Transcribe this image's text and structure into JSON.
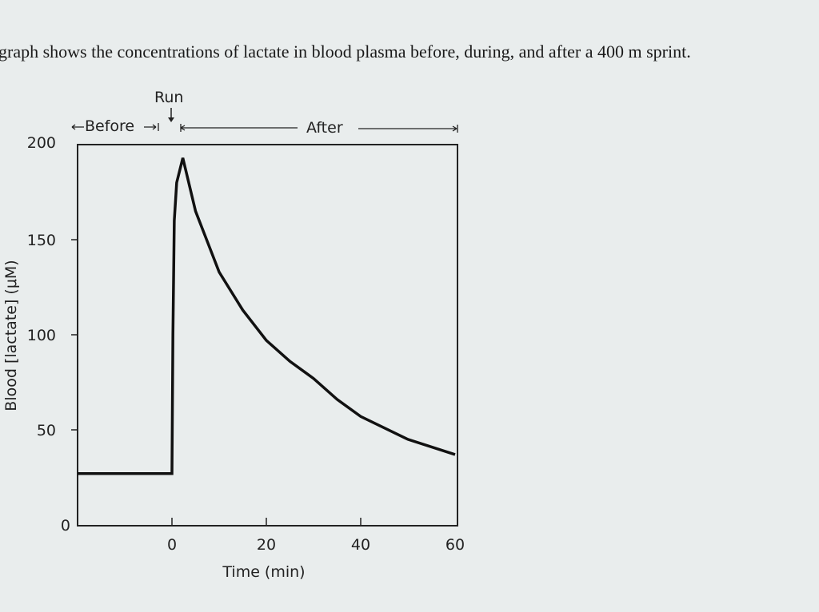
{
  "caption": "graph shows the concentrations of lactate in blood plasma before, during, and after a 400 m sprint.",
  "chart_data": {
    "type": "line",
    "title": "",
    "xlabel": "Time (min)",
    "ylabel": "Blood [lactate] (μM)",
    "xlim": [
      -20,
      60
    ],
    "ylim": [
      0,
      200
    ],
    "x_ticks": [
      "0",
      "20",
      "40",
      "60"
    ],
    "y_ticks": [
      "0",
      "50",
      "100",
      "150",
      "200"
    ],
    "annotations": {
      "run": "Run",
      "before": "Before",
      "after": "After"
    },
    "grid": false,
    "series": [
      {
        "x": [
          -20,
          0,
          0.2,
          0.5,
          1,
          2.3,
          5,
          10,
          15,
          20,
          25,
          30,
          35,
          40,
          50,
          60
        ],
        "y": [
          27,
          27,
          100,
          160,
          180,
          193,
          165,
          133,
          113,
          97,
          86,
          77,
          66,
          57,
          45,
          37
        ]
      }
    ]
  }
}
